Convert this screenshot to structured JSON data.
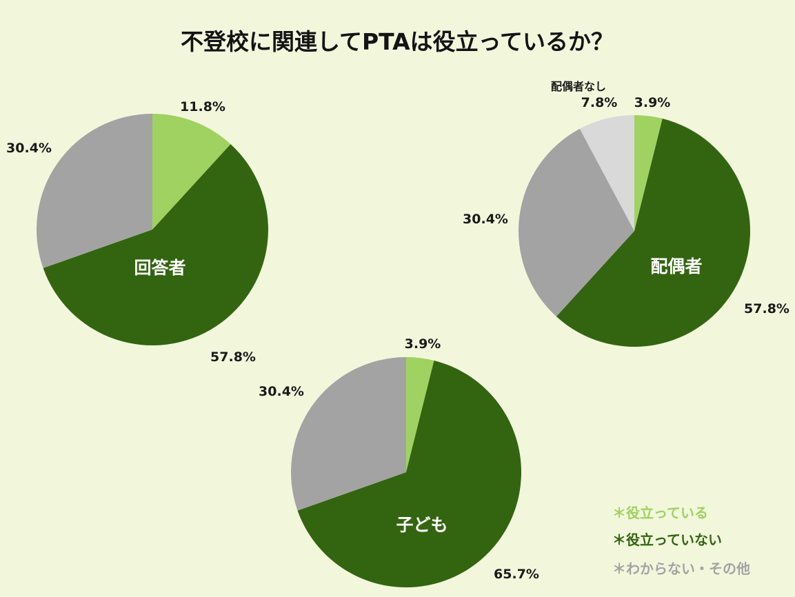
{
  "chart_data": {
    "title": "不登校に関連してPTAは役立っているか？",
    "legend": [
      {
        "label": "＊役立っている",
        "color": "#9fd260"
      },
      {
        "label": "＊役立っていない",
        "color": "#336510"
      },
      {
        "label": "＊わからない・その他",
        "color": "#a3a3a3"
      }
    ],
    "charts": [
      {
        "type": "pie",
        "name": "回答者",
        "slices": [
          {
            "category": "役立っている",
            "value": 11.8,
            "label": "11.8%",
            "color": "#9fd260"
          },
          {
            "category": "役立っていない",
            "value": 57.8,
            "label": "57.8%",
            "color": "#336510"
          },
          {
            "category": "わからない・その他",
            "value": 30.4,
            "label": "30.4%",
            "color": "#a3a3a3"
          }
        ]
      },
      {
        "type": "pie",
        "name": "配偶者",
        "slices": [
          {
            "category": "役立っている",
            "value": 3.9,
            "label": "3.9%",
            "color": "#9fd260"
          },
          {
            "category": "役立っていない",
            "value": 57.8,
            "label": "57.8%",
            "color": "#336510"
          },
          {
            "category": "わからない・その他",
            "value": 30.4,
            "label": "30.4%",
            "color": "#a3a3a3"
          },
          {
            "category": "配偶者なし",
            "value": 7.8,
            "label": "7.8%",
            "color": "#d9d9d9",
            "caption": "配偶者なし"
          }
        ]
      },
      {
        "type": "pie",
        "name": "子ども",
        "slices": [
          {
            "category": "役立っている",
            "value": 3.9,
            "label": "3.9%",
            "color": "#9fd260"
          },
          {
            "category": "役立っていない",
            "value": 65.7,
            "label": "65.7%",
            "color": "#336510"
          },
          {
            "category": "わからない・その他",
            "value": 30.4,
            "label": "30.4%",
            "color": "#a3a3a3"
          }
        ]
      }
    ]
  }
}
